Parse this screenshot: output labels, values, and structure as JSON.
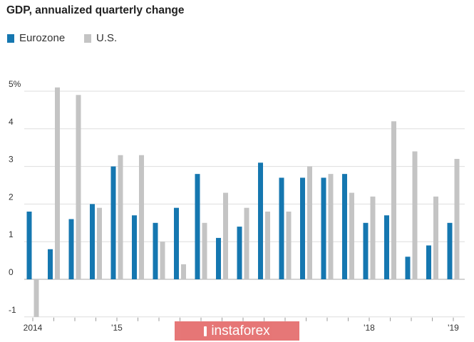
{
  "chart_data": {
    "type": "bar",
    "title": "GDP, annualized quarterly change",
    "x": [
      2014.0,
      2014.25,
      2014.5,
      2014.75,
      2015.0,
      2015.25,
      2015.5,
      2015.75,
      2016.0,
      2016.25,
      2016.5,
      2016.75,
      2017.0,
      2017.25,
      2017.5,
      2017.75,
      2018.0,
      2018.25,
      2018.5,
      2018.75,
      2019.0
    ],
    "series": [
      {
        "name": "Eurozone",
        "color": "#1577b0",
        "values": [
          1.8,
          0.8,
          1.6,
          2.0,
          3.0,
          1.7,
          1.5,
          1.9,
          2.8,
          1.1,
          1.4,
          3.1,
          2.7,
          2.7,
          2.7,
          2.8,
          1.5,
          1.7,
          0.6,
          0.9,
          1.5
        ]
      },
      {
        "name": "U.S.",
        "color": "#c4c4c4",
        "values": [
          -1.0,
          5.1,
          4.9,
          1.9,
          3.3,
          3.3,
          1.0,
          0.4,
          1.5,
          2.3,
          1.9,
          1.8,
          1.8,
          3.0,
          2.8,
          2.3,
          2.2,
          4.2,
          3.4,
          2.2,
          3.2
        ]
      }
    ],
    "y_ticks": [
      {
        "value": 5,
        "label": "5%"
      },
      {
        "value": 4,
        "label": "4"
      },
      {
        "value": 3,
        "label": "3"
      },
      {
        "value": 2,
        "label": "2"
      },
      {
        "value": 1,
        "label": "1"
      },
      {
        "value": 0,
        "label": "0"
      },
      {
        "value": -1,
        "label": "-1"
      }
    ],
    "x_ticks": [
      {
        "value": 2014,
        "label": "2014"
      },
      {
        "value": 2015,
        "label": "'15"
      },
      {
        "value": 2018,
        "label": "'18"
      },
      {
        "value": 2019,
        "label": "'19"
      }
    ],
    "ylim": [
      -1,
      5
    ],
    "grid": true,
    "legend_position": "top-left"
  },
  "watermark": {
    "text": "instaforex",
    "color": "#e36464"
  }
}
